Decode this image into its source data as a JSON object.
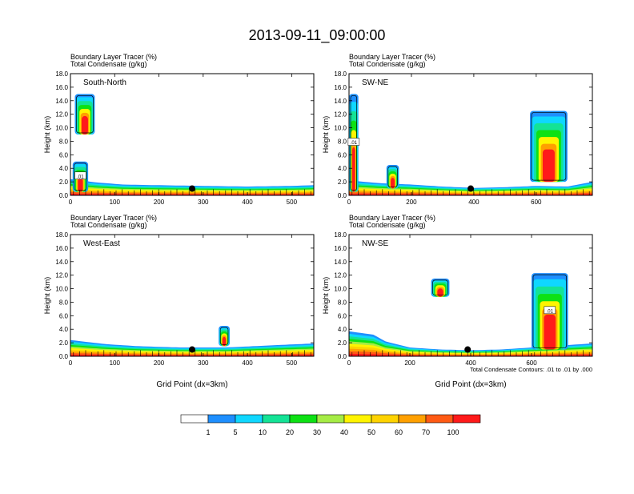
{
  "title": "2013-09-11_09:00:00",
  "colors": {
    "blue": "#1e8fff",
    "cyan": "#0fd7ff",
    "teal": "#14e396",
    "green": "#0de114",
    "lime": "#a5ec45",
    "yellow": "#fff400",
    "gold": "#fed300",
    "orange": "#ffa000",
    "red_orange": "#ff5a14",
    "red": "#ff1a1a",
    "contour": "#000000"
  },
  "chart_data": [
    {
      "type": "heatmap",
      "panel": "top-left",
      "label": "South-North",
      "title_line1": "Boundary Layer Tracer    (%)",
      "title_line2": "Total Condensate    (g/kg)",
      "ylabel": "Height (km)",
      "xlabel": "",
      "xlim": [
        0,
        550
      ],
      "ylim": [
        0,
        18
      ],
      "xticks": [
        0,
        100,
        200,
        300,
        400,
        500
      ],
      "yticks": [
        0.0,
        2.0,
        4.0,
        6.0,
        8.0,
        10.0,
        12.0,
        14.0,
        16.0,
        18.0
      ],
      "marker": {
        "x": 275,
        "y": 1.0
      },
      "boundary_layer_top": [
        [
          0,
          2.4
        ],
        [
          60,
          1.9
        ],
        [
          120,
          1.6
        ],
        [
          200,
          1.5
        ],
        [
          300,
          1.4
        ],
        [
          400,
          1.3
        ],
        [
          500,
          1.4
        ],
        [
          550,
          1.5
        ]
      ],
      "plumes": [
        {
          "x": [
            5,
            40
          ],
          "top": 5.0,
          "base": 0.5
        },
        {
          "x": [
            10,
            55
          ],
          "top": 15.0,
          "base": 9.0
        }
      ],
      "contour_labels": [
        ".01"
      ]
    },
    {
      "type": "heatmap",
      "panel": "top-right",
      "label": "SW-NE",
      "title_line1": "Boundary Layer Tracer    (%)",
      "title_line2": "Total Condensate    (g/kg)",
      "ylabel": "Height (km)",
      "xlabel": "",
      "xlim": [
        0,
        780
      ],
      "ylim": [
        0,
        18
      ],
      "xticks": [
        0,
        200,
        400,
        600
      ],
      "yticks": [
        0.0,
        2.0,
        4.0,
        6.0,
        8.0,
        10.0,
        12.0,
        14.0,
        16.0,
        18.0
      ],
      "marker": {
        "x": 390,
        "y": 1.0
      },
      "boundary_layer_top": [
        [
          0,
          2.2
        ],
        [
          100,
          1.8
        ],
        [
          200,
          1.6
        ],
        [
          300,
          1.3
        ],
        [
          400,
          1.1
        ],
        [
          500,
          1.2
        ],
        [
          600,
          1.4
        ],
        [
          700,
          1.3
        ],
        [
          780,
          2.0
        ]
      ],
      "plumes": [
        {
          "x": [
            0,
            30
          ],
          "top": 15.0,
          "base": 0.5
        },
        {
          "x": [
            120,
            160
          ],
          "top": 4.5,
          "base": 1.0
        },
        {
          "x": [
            580,
            700
          ],
          "top": 12.5,
          "base": 2.0
        }
      ],
      "contour_labels": [
        ".01"
      ]
    },
    {
      "type": "heatmap",
      "panel": "bottom-left",
      "label": "West-East",
      "title_line1": "Boundary Layer Tracer    (%)",
      "title_line2": "Total Condensate    (g/kg)",
      "ylabel": "Height (km)",
      "xlabel": "Grid Point (dx=3km)",
      "xlim": [
        0,
        550
      ],
      "ylim": [
        0,
        18
      ],
      "xticks": [
        0,
        100,
        200,
        300,
        400,
        500
      ],
      "yticks": [
        0.0,
        2.0,
        4.0,
        6.0,
        8.0,
        10.0,
        12.0,
        14.0,
        16.0,
        18.0
      ],
      "marker": {
        "x": 275,
        "y": 1.0
      },
      "boundary_layer_top": [
        [
          0,
          2.4
        ],
        [
          80,
          1.8
        ],
        [
          150,
          1.5
        ],
        [
          250,
          1.3
        ],
        [
          350,
          1.3
        ],
        [
          450,
          1.6
        ],
        [
          550,
          1.9
        ]
      ],
      "plumes": [
        {
          "x": [
            335,
            360
          ],
          "top": 4.5,
          "base": 1.5
        }
      ],
      "contour_labels": []
    },
    {
      "type": "heatmap",
      "panel": "bottom-right",
      "label": "NW-SE",
      "title_line1": "Boundary Layer Tracer    (%)",
      "title_line2": "Total Condensate    (g/kg)",
      "ylabel": "Height (km)",
      "xlabel": "Grid Point (dx=3km)",
      "xlim": [
        0,
        800
      ],
      "ylim": [
        0,
        18
      ],
      "xticks": [
        0,
        200,
        400,
        600
      ],
      "yticks": [
        0.0,
        2.0,
        4.0,
        6.0,
        8.0,
        10.0,
        12.0,
        14.0,
        16.0,
        18.0
      ],
      "marker": {
        "x": 390,
        "y": 1.0
      },
      "boundary_layer_top": [
        [
          0,
          3.7
        ],
        [
          80,
          3.2
        ],
        [
          120,
          2.2
        ],
        [
          200,
          1.3
        ],
        [
          300,
          1.0
        ],
        [
          400,
          0.9
        ],
        [
          500,
          1.0
        ],
        [
          600,
          1.3
        ],
        [
          700,
          1.6
        ],
        [
          800,
          1.9
        ]
      ],
      "plumes": [
        {
          "x": [
            600,
            720
          ],
          "top": 12.3,
          "base": 1.0
        },
        {
          "x": [
            270,
            330
          ],
          "top": 11.5,
          "base": 8.8
        }
      ],
      "contour_labels": [
        ".01"
      ],
      "footnote": "Total Condensate Contours: .01 to .01 by .000"
    }
  ],
  "colorbar": {
    "labels": [
      "1",
      "5",
      "10",
      "20",
      "30",
      "40",
      "50",
      "60",
      "70",
      "100"
    ],
    "colors": [
      "#ffffff",
      "#1e8fff",
      "#0fd7ff",
      "#14e396",
      "#0de114",
      "#a5ec45",
      "#fff400",
      "#fed300",
      "#ffa000",
      "#ff5a14",
      "#ff1a1a"
    ]
  }
}
